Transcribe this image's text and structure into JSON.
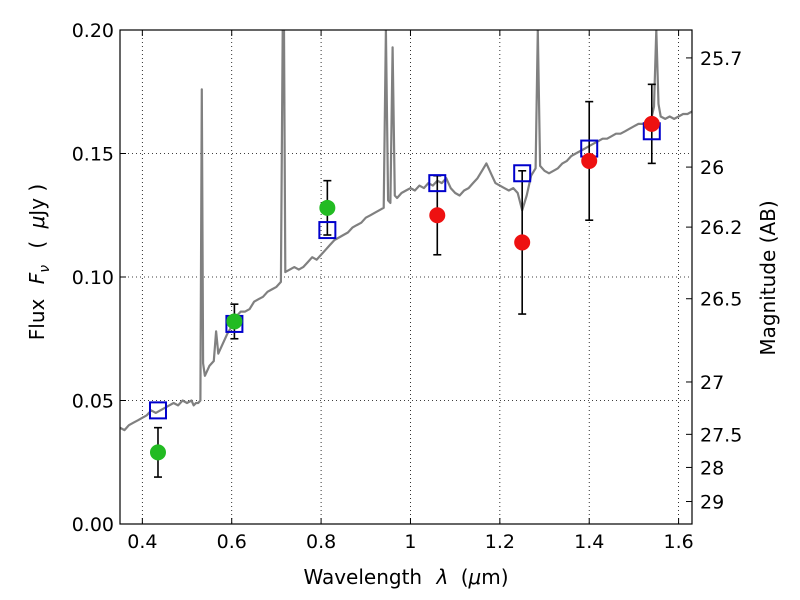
{
  "chart_data": {
    "type": "scatter",
    "xlabel_text": "Wavelength",
    "xlabel_symbol": "λ",
    "xlabel_unit_open": "(",
    "xlabel_unit_mu": "μ",
    "xlabel_unit_rest": "m)",
    "ylabel_text": "Flux",
    "ylabel_symbol": "F",
    "ylabel_subscript": "ν",
    "ylabel_unit_open": "(",
    "ylabel_unit_mu": "μ",
    "ylabel_unit_rest": "Jy )",
    "y2label": "Magnitude (AB)",
    "xlim": [
      0.35,
      1.63
    ],
    "ylim": [
      0.0,
      0.2
    ],
    "grid": true,
    "x_ticks": [
      0.4,
      0.6,
      0.8,
      1.0,
      1.2,
      1.4,
      1.6
    ],
    "x_tick_labels": [
      "0.4",
      "0.6",
      "0.8",
      "1",
      "1.2",
      "1.4",
      "1.6"
    ],
    "y_ticks": [
      0.0,
      0.05,
      0.1,
      0.15,
      0.2
    ],
    "y_tick_labels": [
      "0.00",
      "0.05",
      "0.10",
      "0.15",
      "0.20"
    ],
    "y2_ticks": [
      {
        "label": "25.7",
        "flux": 0.1887
      },
      {
        "label": "26",
        "flux": 0.1445
      },
      {
        "label": "26.2",
        "flux": 0.1202
      },
      {
        "label": "26.5",
        "flux": 0.0912
      },
      {
        "label": "27",
        "flux": 0.0575
      },
      {
        "label": "27.5",
        "flux": 0.0363
      },
      {
        "label": "28",
        "flux": 0.0229
      },
      {
        "label": "29",
        "flux": 0.0091
      }
    ],
    "series": [
      {
        "name": "template_spectrum",
        "kind": "line",
        "color": "#808080",
        "points": [
          [
            0.35,
            0.039
          ],
          [
            0.36,
            0.038
          ],
          [
            0.37,
            0.04
          ],
          [
            0.38,
            0.041
          ],
          [
            0.39,
            0.042
          ],
          [
            0.4,
            0.043
          ],
          [
            0.41,
            0.044
          ],
          [
            0.42,
            0.046
          ],
          [
            0.43,
            0.045
          ],
          [
            0.44,
            0.046
          ],
          [
            0.45,
            0.047
          ],
          [
            0.46,
            0.048
          ],
          [
            0.47,
            0.049
          ],
          [
            0.48,
            0.048
          ],
          [
            0.49,
            0.05
          ],
          [
            0.5,
            0.049
          ],
          [
            0.51,
            0.05
          ],
          [
            0.515,
            0.048
          ],
          [
            0.52,
            0.049
          ],
          [
            0.525,
            0.049
          ],
          [
            0.53,
            0.05
          ],
          [
            0.533,
            0.176
          ],
          [
            0.536,
            0.065
          ],
          [
            0.54,
            0.06
          ],
          [
            0.55,
            0.064
          ],
          [
            0.56,
            0.066
          ],
          [
            0.565,
            0.078
          ],
          [
            0.57,
            0.069
          ],
          [
            0.58,
            0.073
          ],
          [
            0.59,
            0.077
          ],
          [
            0.6,
            0.08
          ],
          [
            0.605,
            0.083
          ],
          [
            0.61,
            0.084
          ],
          [
            0.62,
            0.086
          ],
          [
            0.63,
            0.086
          ],
          [
            0.64,
            0.087
          ],
          [
            0.65,
            0.09
          ],
          [
            0.66,
            0.091
          ],
          [
            0.67,
            0.092
          ],
          [
            0.68,
            0.094
          ],
          [
            0.69,
            0.095
          ],
          [
            0.7,
            0.096
          ],
          [
            0.71,
            0.098
          ],
          [
            0.714,
            0.2
          ],
          [
            0.717,
            0.2
          ],
          [
            0.72,
            0.102
          ],
          [
            0.73,
            0.103
          ],
          [
            0.74,
            0.104
          ],
          [
            0.75,
            0.103
          ],
          [
            0.76,
            0.104
          ],
          [
            0.77,
            0.106
          ],
          [
            0.78,
            0.108
          ],
          [
            0.79,
            0.107
          ],
          [
            0.8,
            0.109
          ],
          [
            0.81,
            0.111
          ],
          [
            0.82,
            0.113
          ],
          [
            0.83,
            0.115
          ],
          [
            0.84,
            0.116
          ],
          [
            0.85,
            0.117
          ],
          [
            0.86,
            0.118
          ],
          [
            0.87,
            0.12
          ],
          [
            0.88,
            0.121
          ],
          [
            0.89,
            0.122
          ],
          [
            0.9,
            0.124
          ],
          [
            0.91,
            0.125
          ],
          [
            0.92,
            0.126
          ],
          [
            0.93,
            0.127
          ],
          [
            0.94,
            0.128
          ],
          [
            0.945,
            0.2
          ],
          [
            0.95,
            0.131
          ],
          [
            0.955,
            0.13
          ],
          [
            0.96,
            0.193
          ],
          [
            0.965,
            0.133
          ],
          [
            0.97,
            0.132
          ],
          [
            0.98,
            0.134
          ],
          [
            0.99,
            0.135
          ],
          [
            1.0,
            0.136
          ],
          [
            1.01,
            0.135
          ],
          [
            1.02,
            0.137
          ],
          [
            1.03,
            0.136
          ],
          [
            1.04,
            0.138
          ],
          [
            1.05,
            0.137
          ],
          [
            1.06,
            0.139
          ],
          [
            1.07,
            0.138
          ],
          [
            1.08,
            0.14
          ],
          [
            1.09,
            0.136
          ],
          [
            1.1,
            0.134
          ],
          [
            1.11,
            0.133
          ],
          [
            1.12,
            0.135
          ],
          [
            1.13,
            0.136
          ],
          [
            1.14,
            0.138
          ],
          [
            1.15,
            0.14
          ],
          [
            1.16,
            0.143
          ],
          [
            1.17,
            0.146
          ],
          [
            1.18,
            0.142
          ],
          [
            1.19,
            0.138
          ],
          [
            1.2,
            0.137
          ],
          [
            1.21,
            0.136
          ],
          [
            1.22,
            0.135
          ],
          [
            1.23,
            0.136
          ],
          [
            1.24,
            0.134
          ],
          [
            1.25,
            0.127
          ],
          [
            1.26,
            0.133
          ],
          [
            1.27,
            0.141
          ],
          [
            1.28,
            0.144
          ],
          [
            1.285,
            0.2
          ],
          [
            1.29,
            0.145
          ],
          [
            1.3,
            0.143
          ],
          [
            1.31,
            0.142
          ],
          [
            1.32,
            0.143
          ],
          [
            1.33,
            0.144
          ],
          [
            1.34,
            0.146
          ],
          [
            1.35,
            0.147
          ],
          [
            1.36,
            0.149
          ],
          [
            1.37,
            0.15
          ],
          [
            1.38,
            0.151
          ],
          [
            1.39,
            0.152
          ],
          [
            1.4,
            0.153
          ],
          [
            1.41,
            0.154
          ],
          [
            1.42,
            0.155
          ],
          [
            1.43,
            0.156
          ],
          [
            1.44,
            0.156
          ],
          [
            1.45,
            0.157
          ],
          [
            1.46,
            0.158
          ],
          [
            1.47,
            0.158
          ],
          [
            1.48,
            0.159
          ],
          [
            1.49,
            0.16
          ],
          [
            1.5,
            0.161
          ],
          [
            1.51,
            0.162
          ],
          [
            1.52,
            0.162
          ],
          [
            1.53,
            0.163
          ],
          [
            1.54,
            0.165
          ],
          [
            1.545,
            0.169
          ],
          [
            1.55,
            0.2
          ],
          [
            1.555,
            0.17
          ],
          [
            1.56,
            0.165
          ],
          [
            1.57,
            0.164
          ],
          [
            1.58,
            0.165
          ],
          [
            1.59,
            0.164
          ],
          [
            1.6,
            0.165
          ],
          [
            1.61,
            0.166
          ],
          [
            1.62,
            0.166
          ],
          [
            1.63,
            0.167
          ]
        ]
      },
      {
        "name": "model_photometry",
        "kind": "open-square",
        "color": "#0000cc",
        "x": [
          0.435,
          0.606,
          0.814,
          1.06,
          1.25,
          1.4,
          1.54
        ],
        "y": [
          0.046,
          0.081,
          0.119,
          0.138,
          0.142,
          0.152,
          0.159
        ]
      },
      {
        "name": "observed_green",
        "kind": "filled-circle",
        "color": "#22bb22",
        "x": [
          0.435,
          0.606,
          0.814
        ],
        "y": [
          0.029,
          0.082,
          0.128
        ],
        "yerr": [
          0.01,
          0.007,
          0.011
        ]
      },
      {
        "name": "observed_red",
        "kind": "filled-circle",
        "color": "#ee1111",
        "x": [
          1.06,
          1.25,
          1.4,
          1.54
        ],
        "y": [
          0.125,
          0.114,
          0.147,
          0.162
        ],
        "yerr": [
          0.016,
          0.029,
          0.024,
          0.016
        ]
      }
    ]
  }
}
